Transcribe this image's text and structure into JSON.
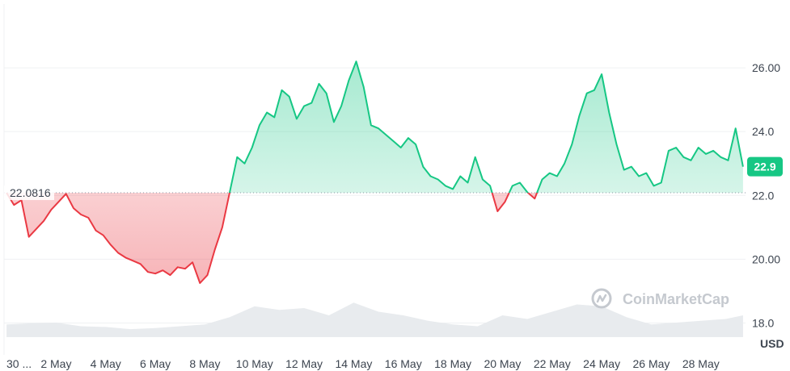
{
  "chart_data": {
    "type": "area",
    "y_ticks": [
      "26.00",
      "24.0",
      "22.0",
      "20.00",
      "18.0"
    ],
    "ylim": [
      17,
      28
    ],
    "x_tick_labels": [
      "30 ...",
      "2 May",
      "4 May",
      "6 May",
      "8 May",
      "10 May",
      "12 May",
      "14 May",
      "16 May",
      "18 May",
      "20 May",
      "22 May",
      "24 May",
      "26 May",
      "28 May"
    ],
    "x_tick_days": [
      0,
      2,
      4,
      6,
      8,
      10,
      12,
      14,
      16,
      18,
      20,
      22,
      24,
      26,
      28
    ],
    "xlim": [
      -0.1,
      29.8
    ],
    "unit_label": "USD",
    "baseline": {
      "value": 22.0816,
      "label": "22.0816"
    },
    "current": {
      "value": 22.9,
      "label": "22.9"
    },
    "colors": {
      "up": "#16c784",
      "down": "#ea3943",
      "grid": "#eff1f3",
      "volume": "#e8ebee",
      "current_bg": "#16c784"
    },
    "watermark": "CoinMarketCap",
    "price_series": {
      "x_days": [
        0,
        0.3,
        0.6,
        0.9,
        1.2,
        1.5,
        1.8,
        2.1,
        2.4,
        2.7,
        3.0,
        3.3,
        3.6,
        3.9,
        4.2,
        4.5,
        4.8,
        5.1,
        5.4,
        5.7,
        6.0,
        6.3,
        6.6,
        6.9,
        7.2,
        7.5,
        7.8,
        8.1,
        8.4,
        8.7,
        9.0,
        9.3,
        9.6,
        9.9,
        10.2,
        10.5,
        10.8,
        11.1,
        11.4,
        11.7,
        12.0,
        12.3,
        12.6,
        12.9,
        13.2,
        13.5,
        13.8,
        14.1,
        14.4,
        14.7,
        15.0,
        15.3,
        15.6,
        15.9,
        16.2,
        16.5,
        16.8,
        17.1,
        17.4,
        17.7,
        18.0,
        18.3,
        18.6,
        18.9,
        19.2,
        19.5,
        19.8,
        20.1,
        20.4,
        20.7,
        21.0,
        21.3,
        21.6,
        21.9,
        22.2,
        22.5,
        22.8,
        23.1,
        23.4,
        23.7,
        24.0,
        24.3,
        24.6,
        24.9,
        25.2,
        25.5,
        25.8,
        26.1,
        26.4,
        26.7,
        27.0,
        27.3,
        27.6,
        27.9,
        28.2,
        28.5,
        28.8,
        29.1,
        29.4,
        29.7
      ],
      "values": [
        22.08,
        21.7,
        21.85,
        20.7,
        20.95,
        21.2,
        21.55,
        21.8,
        22.05,
        21.6,
        21.4,
        21.3,
        20.9,
        20.75,
        20.45,
        20.2,
        20.05,
        19.95,
        19.85,
        19.6,
        19.55,
        19.65,
        19.5,
        19.75,
        19.7,
        19.9,
        19.25,
        19.5,
        20.3,
        21.0,
        22.1,
        23.2,
        23.0,
        23.5,
        24.2,
        24.6,
        24.45,
        25.3,
        25.1,
        24.4,
        24.8,
        24.9,
        25.5,
        25.2,
        24.3,
        24.8,
        25.6,
        26.2,
        25.4,
        24.2,
        24.1,
        23.9,
        23.7,
        23.5,
        23.8,
        23.6,
        22.9,
        22.6,
        22.5,
        22.3,
        22.2,
        22.6,
        22.4,
        23.2,
        22.5,
        22.3,
        21.5,
        21.8,
        22.3,
        22.4,
        22.1,
        21.9,
        22.5,
        22.7,
        22.6,
        23.0,
        23.6,
        24.5,
        25.2,
        25.3,
        25.8,
        24.6,
        23.6,
        22.8,
        22.9,
        22.6,
        22.7,
        22.3,
        22.4,
        23.4,
        23.5,
        23.2,
        23.1,
        23.5,
        23.3,
        23.4,
        23.2,
        23.1,
        24.1,
        22.9
      ]
    },
    "volume_series": {
      "x_days": [
        0,
        1,
        2,
        3,
        4,
        5,
        6,
        7,
        8,
        9,
        10,
        11,
        12,
        13,
        14,
        15,
        16,
        17,
        18,
        19,
        20,
        21,
        22,
        23,
        24,
        25,
        26,
        27,
        28,
        29,
        29.7
      ],
      "values": [
        0.35,
        0.38,
        0.4,
        0.3,
        0.28,
        0.22,
        0.25,
        0.3,
        0.35,
        0.55,
        0.85,
        0.75,
        0.8,
        0.6,
        0.95,
        0.7,
        0.6,
        0.45,
        0.35,
        0.3,
        0.6,
        0.5,
        0.7,
        0.9,
        0.85,
        0.55,
        0.35,
        0.4,
        0.45,
        0.5,
        0.6
      ]
    }
  }
}
